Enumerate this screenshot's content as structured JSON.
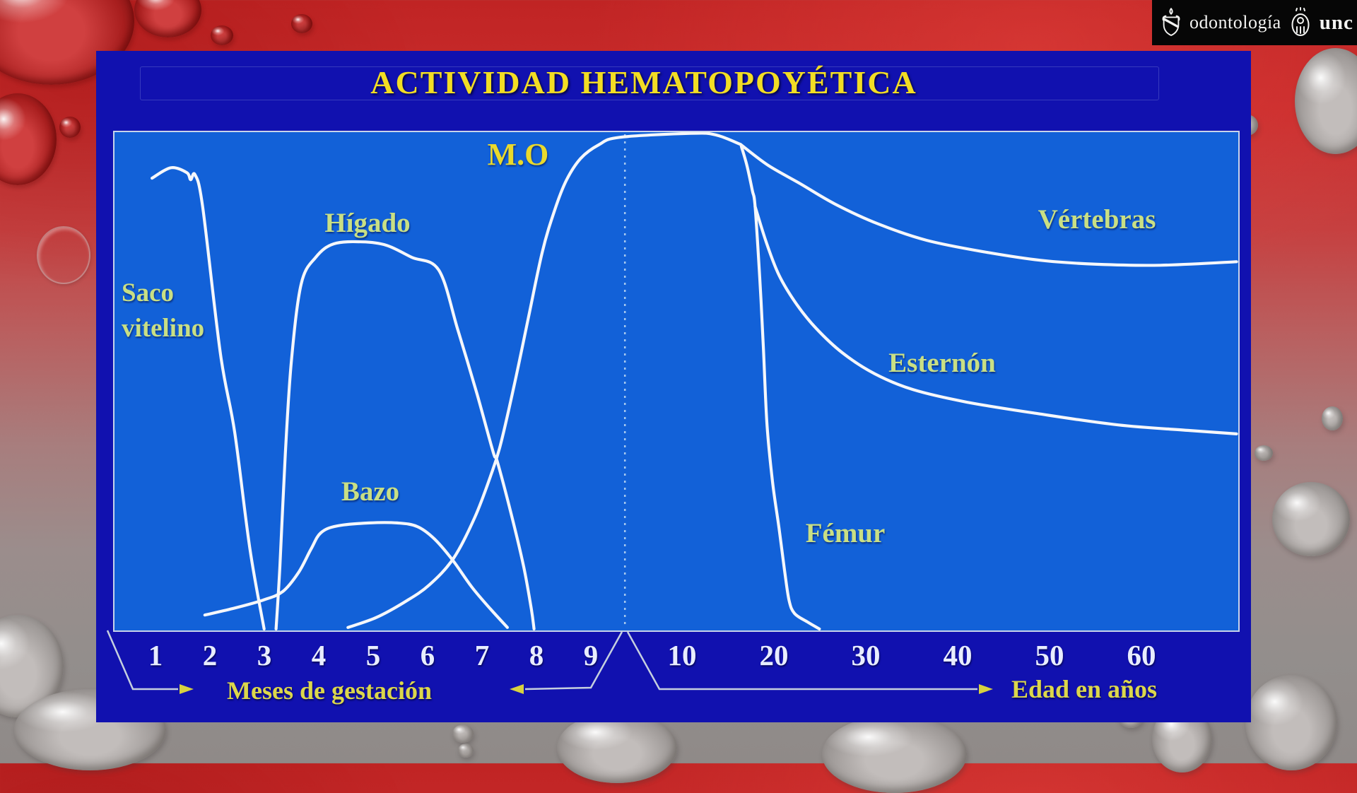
{
  "logo_bar": {
    "faculty": "odontología",
    "university": "unc"
  },
  "title": "ACTIVIDAD HEMATOPOYÉTICA",
  "curve_labels": {
    "saco_line1": "Saco",
    "saco_line2": "vitelino",
    "higado": "Hígado",
    "bazo": "Bazo",
    "mo": "M.O",
    "vertebras": "Vértebras",
    "esternon": "Esternón",
    "femur": "Fémur"
  },
  "chart_data": {
    "type": "line",
    "title": "ACTIVIDAD HEMATOPOYÉTICA",
    "grid": false,
    "legend": "inline-labels",
    "x_axis": {
      "break_at": 9.6,
      "note": "x values 1-9.6 are months of gestation; values 10+ are age in years (compressed scale)",
      "months": {
        "label": "Meses de gestación",
        "ticks": [
          1,
          2,
          3,
          4,
          5,
          6,
          7,
          8,
          9
        ]
      },
      "years": {
        "label": "Edad en años",
        "ticks": [
          10,
          20,
          30,
          40,
          50,
          60
        ]
      }
    },
    "y_axis": {
      "range": [
        0,
        100
      ],
      "visible_labels": false,
      "meaning": "relative hematopoietic activity (unlabeled)"
    },
    "series": [
      {
        "name": "Saco vitelino",
        "points": [
          [
            0.91,
            90.9
          ],
          [
            1.26,
            93.0
          ],
          [
            1.55,
            92.0
          ],
          [
            1.62,
            90.6
          ],
          [
            1.7,
            91.6
          ],
          [
            1.84,
            85.2
          ],
          [
            2.17,
            55.4
          ],
          [
            2.43,
            39.8
          ],
          [
            2.71,
            16.3
          ],
          [
            2.97,
            0.3
          ]
        ]
      },
      {
        "name": "Hígado",
        "points": [
          [
            3.19,
            0.3
          ],
          [
            3.26,
            12.8
          ],
          [
            3.36,
            35.5
          ],
          [
            3.47,
            54.0
          ],
          [
            3.65,
            69.6
          ],
          [
            3.92,
            75.0
          ],
          [
            4.25,
            77.7
          ],
          [
            4.77,
            78.1
          ],
          [
            5.22,
            77.4
          ],
          [
            5.68,
            75.0
          ],
          [
            6.18,
            72.4
          ],
          [
            6.53,
            60.4
          ],
          [
            6.88,
            47.6
          ],
          [
            7.18,
            35.8
          ],
          [
            7.25,
            34.1
          ],
          [
            7.51,
            23.4
          ],
          [
            7.74,
            12.8
          ],
          [
            7.88,
            4.3
          ],
          [
            7.93,
            0.3
          ]
        ]
      },
      {
        "name": "Bazo",
        "points": [
          [
            1.88,
            3.1
          ],
          [
            2.43,
            4.5
          ],
          [
            2.95,
            6.1
          ],
          [
            3.31,
            7.8
          ],
          [
            3.6,
            11.6
          ],
          [
            3.83,
            16.3
          ],
          [
            4.01,
            19.6
          ],
          [
            4.31,
            21.0
          ],
          [
            4.9,
            21.6
          ],
          [
            5.42,
            21.6
          ],
          [
            5.78,
            20.9
          ],
          [
            6.09,
            18.5
          ],
          [
            6.43,
            14.2
          ],
          [
            6.78,
            8.8
          ],
          [
            7.13,
            4.3
          ],
          [
            7.44,
            0.6
          ]
        ]
      },
      {
        "name": "M.O",
        "points": [
          [
            4.51,
            0.6
          ],
          [
            5.03,
            2.6
          ],
          [
            5.55,
            5.7
          ],
          [
            6.0,
            9.1
          ],
          [
            6.45,
            14.5
          ],
          [
            6.84,
            22.7
          ],
          [
            7.13,
            31.0
          ],
          [
            7.31,
            37.2
          ],
          [
            7.56,
            49.0
          ],
          [
            7.82,
            62.5
          ],
          [
            8.08,
            76.0
          ],
          [
            8.31,
            84.5
          ],
          [
            8.53,
            90.6
          ],
          [
            8.79,
            94.9
          ],
          [
            9.12,
            97.6
          ],
          [
            9.5,
            99.1
          ],
          [
            10.8,
            99.9
          ],
          [
            13.5,
            99.6
          ],
          [
            16.2,
            97.7
          ]
        ]
      },
      {
        "name": "Vértebras",
        "points": [
          [
            16.2,
            97.7
          ],
          [
            19.2,
            93.5
          ],
          [
            22.7,
            89.8
          ],
          [
            26.5,
            85.7
          ],
          [
            31.2,
            81.7
          ],
          [
            36.5,
            78.4
          ],
          [
            42.7,
            76.1
          ],
          [
            48.8,
            74.4
          ],
          [
            55.0,
            73.6
          ],
          [
            61.9,
            73.4
          ],
          [
            70.2,
            74.1
          ]
        ]
      },
      {
        "name": "Esternón",
        "points": [
          [
            17.8,
            85.2
          ],
          [
            19.0,
            78.1
          ],
          [
            20.4,
            71.4
          ],
          [
            22.3,
            65.6
          ],
          [
            24.4,
            60.8
          ],
          [
            27.3,
            55.8
          ],
          [
            30.8,
            51.6
          ],
          [
            35.0,
            48.4
          ],
          [
            40.8,
            45.9
          ],
          [
            48.5,
            43.6
          ],
          [
            57.3,
            41.3
          ],
          [
            65.0,
            40.2
          ],
          [
            70.2,
            39.5
          ]
        ]
      },
      {
        "name": "Fémur",
        "points": [
          [
            16.3,
            97.3
          ],
          [
            16.9,
            93.5
          ],
          [
            17.5,
            88.4
          ],
          [
            17.8,
            85.2
          ],
          [
            18.3,
            71.0
          ],
          [
            18.7,
            56.8
          ],
          [
            19.1,
            41.2
          ],
          [
            19.7,
            29.8
          ],
          [
            20.4,
            20.6
          ],
          [
            21.0,
            12.1
          ],
          [
            21.5,
            6.0
          ],
          [
            22.1,
            3.4
          ],
          [
            23.5,
            1.7
          ],
          [
            24.8,
            0.3
          ]
        ]
      }
    ],
    "annotations": {
      "dashed_vertical_line_at": 9.6
    }
  },
  "colors": {
    "panel_blue": "#1111af",
    "chart_blue": "#1261d8",
    "curve_white": "#f5f7fb",
    "dashed_line": "#a6c8ee",
    "label_green": "#c9df84",
    "title_yellow": "#f2dd24",
    "axis_white": "#e8edff",
    "caption_yellow": "#dcd74b",
    "bracket_line": "#c5cfdf",
    "logo_bar_black": "#060606"
  }
}
